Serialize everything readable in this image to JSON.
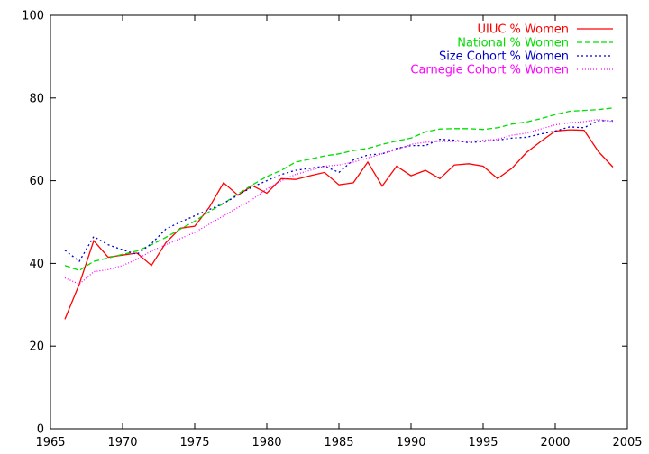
{
  "chart_data": {
    "type": "line",
    "title": "",
    "xlabel": "",
    "ylabel": "",
    "xlim": [
      1965,
      2005
    ],
    "ylim": [
      0,
      100
    ],
    "x_ticks": [
      1965,
      1970,
      1975,
      1980,
      1985,
      1990,
      1995,
      2000,
      2005
    ],
    "y_ticks": [
      0,
      20,
      40,
      60,
      80,
      100
    ],
    "grid": false,
    "legend_position": "top-right",
    "x": [
      1966,
      1967,
      1968,
      1969,
      1970,
      1971,
      1972,
      1973,
      1974,
      1975,
      1976,
      1977,
      1978,
      1979,
      1980,
      1981,
      1982,
      1983,
      1984,
      1985,
      1986,
      1987,
      1988,
      1989,
      1990,
      1991,
      1992,
      1993,
      1994,
      1995,
      1996,
      1997,
      1998,
      1999,
      2000,
      2001,
      2002,
      2003,
      2004
    ],
    "series": [
      {
        "name": "UIUC % Women",
        "color": "#ff0000",
        "dash": "solid",
        "values": [
          26.5,
          35.0,
          45.5,
          41.5,
          42.0,
          42.5,
          39.5,
          45.0,
          48.5,
          49.0,
          53.5,
          59.5,
          56.5,
          58.8,
          57.0,
          60.5,
          60.3,
          61.2,
          62.0,
          59.0,
          59.5,
          64.5,
          58.7,
          63.5,
          61.2,
          62.5,
          60.5,
          63.8,
          64.1,
          63.5,
          60.5,
          63.0,
          66.8,
          69.5,
          72.0,
          72.3,
          72.2,
          67.0,
          63.3
        ]
      },
      {
        "name": "National % Women",
        "color": "#00dd00",
        "dash": "dashed",
        "values": [
          39.5,
          38.3,
          40.5,
          41.3,
          42.2,
          43.0,
          44.5,
          46.3,
          48.3,
          50.2,
          52.5,
          54.5,
          56.8,
          59.0,
          61.0,
          62.5,
          64.5,
          65.2,
          66.0,
          66.5,
          67.3,
          67.8,
          68.8,
          69.6,
          70.3,
          71.8,
          72.5,
          72.6,
          72.6,
          72.4,
          72.8,
          73.7,
          74.2,
          75.0,
          76.0,
          76.8,
          77.0,
          77.2,
          77.6
        ]
      },
      {
        "name": "Size Cohort % Women",
        "color": "#0000cc",
        "dash": "dotted",
        "values": [
          43.2,
          40.5,
          46.5,
          44.5,
          43.3,
          42.2,
          44.8,
          48.3,
          50.0,
          51.5,
          53.0,
          54.5,
          56.5,
          58.5,
          60.0,
          61.5,
          62.5,
          63.0,
          63.5,
          62.0,
          65.0,
          66.2,
          66.5,
          67.8,
          68.5,
          68.5,
          70.0,
          69.8,
          69.2,
          69.5,
          69.8,
          70.3,
          70.5,
          71.3,
          72.0,
          73.0,
          72.8,
          74.5,
          74.5
        ]
      },
      {
        "name": "Carnegie Cohort % Women",
        "color": "#ff00ff",
        "dash": "dense-dotted",
        "values": [
          36.5,
          35.0,
          38.0,
          38.5,
          39.5,
          41.0,
          43.0,
          44.5,
          46.0,
          47.5,
          49.5,
          51.5,
          53.5,
          55.5,
          58.0,
          60.0,
          61.5,
          62.5,
          63.5,
          63.8,
          64.5,
          65.5,
          66.5,
          67.5,
          68.8,
          69.3,
          69.5,
          69.5,
          69.5,
          69.8,
          70.0,
          71.0,
          71.5,
          72.5,
          73.5,
          74.0,
          74.3,
          74.8,
          74.3
        ]
      }
    ]
  }
}
